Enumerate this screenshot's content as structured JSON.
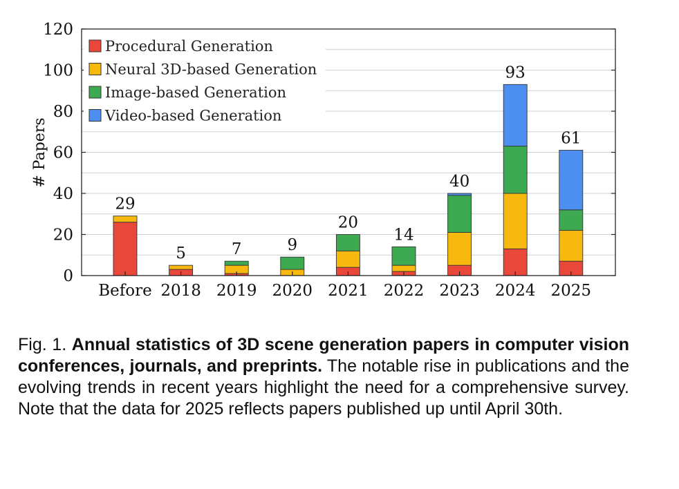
{
  "chart_data": {
    "type": "bar",
    "stacked": true,
    "categories": [
      "Before",
      "2018",
      "2019",
      "2020",
      "2021",
      "2022",
      "2023",
      "2024",
      "2025"
    ],
    "series": [
      {
        "name": "Procedural Generation",
        "color": "#e8473a",
        "values": [
          26,
          3,
          1,
          0,
          4,
          2,
          5,
          13,
          7
        ]
      },
      {
        "name": "Neural 3D-based Generation",
        "color": "#f7b90f",
        "values": [
          3,
          2,
          4,
          3,
          8,
          3,
          16,
          27,
          15
        ]
      },
      {
        "name": "Image-based Generation",
        "color": "#3daa52",
        "values": [
          0,
          0,
          2,
          6,
          8,
          9,
          18,
          23,
          10
        ]
      },
      {
        "name": "Video-based Generation",
        "color": "#4d8ff0",
        "values": [
          0,
          0,
          0,
          0,
          0,
          0,
          1,
          30,
          29
        ]
      }
    ],
    "totals": [
      "29",
      "5",
      "7",
      "9",
      "20",
      "14",
      "40",
      "93",
      "61"
    ],
    "ylabel": "# Papers",
    "xlabel": "",
    "ylim": [
      0,
      120
    ],
    "yticks": [
      "0",
      "20",
      "40",
      "60",
      "80",
      "100",
      "120"
    ],
    "grid": "horizontal",
    "legend_position": "top-left"
  },
  "caption": {
    "prefix": "Fig. 1. ",
    "bold": "Annual statistics of 3D scene generation papers in computer vision conferences, journals, and preprints.",
    "text": " The notable rise in publications and the evolving trends in recent years highlight the need for a comprehensive survey. Note that the data for 2025 reflects papers published up until April 30th."
  }
}
